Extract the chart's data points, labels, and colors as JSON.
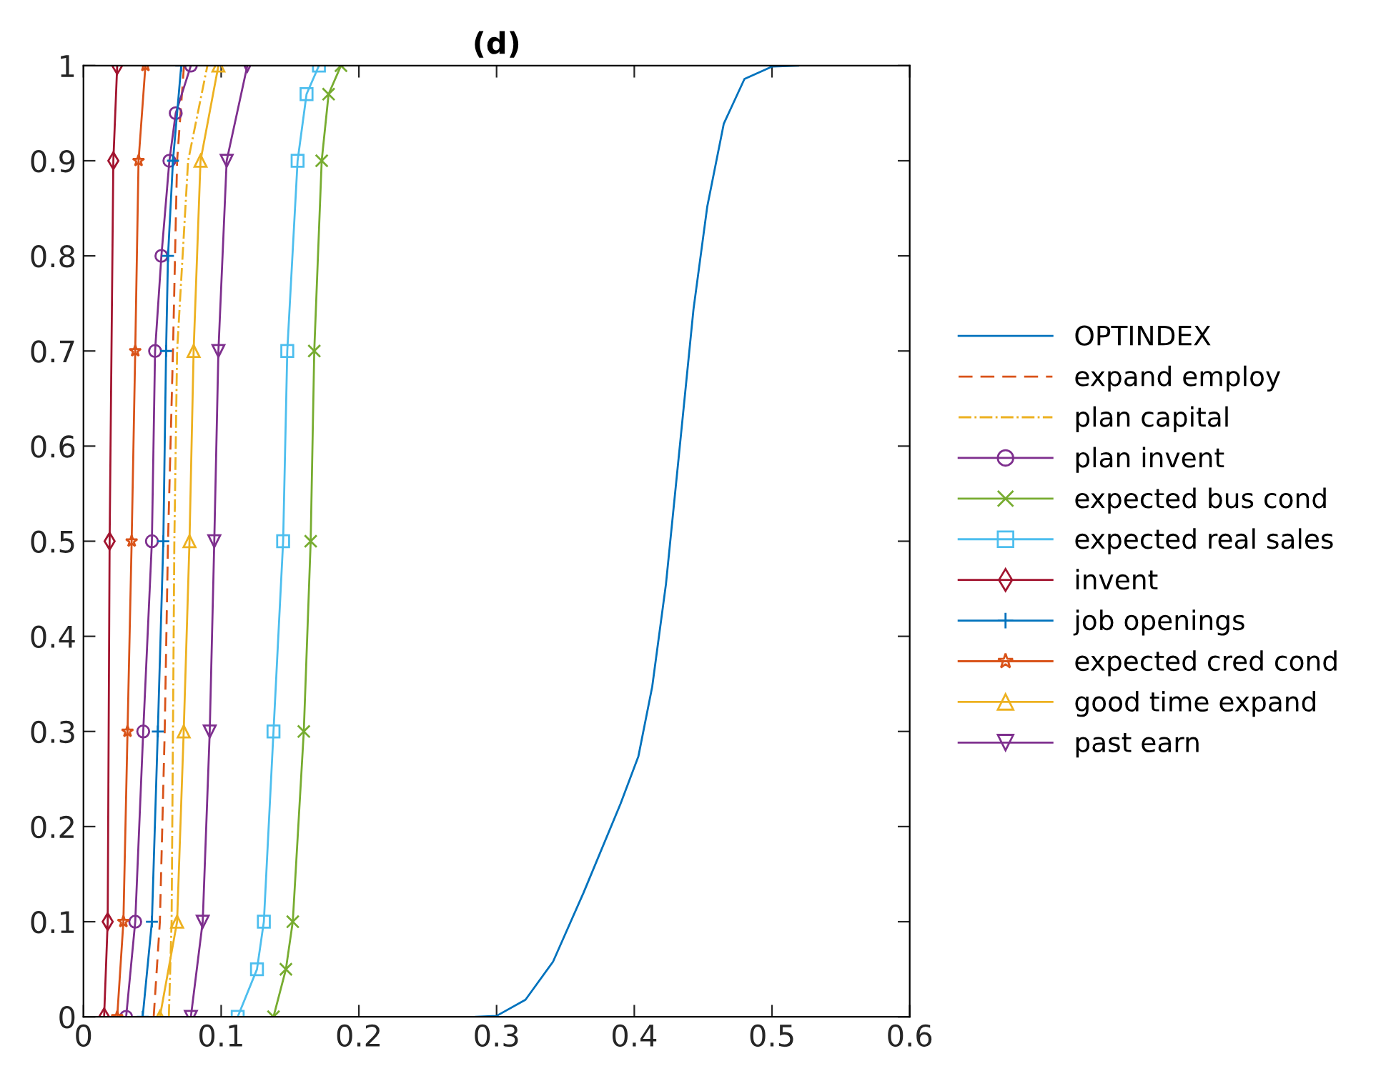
{
  "chart_data": {
    "type": "line",
    "title": "(d)",
    "xlim": [
      0,
      0.6
    ],
    "ylim": [
      0,
      1
    ],
    "xticks": [
      0,
      0.1,
      0.2,
      0.3,
      0.4,
      0.5,
      0.6
    ],
    "yticks": [
      0,
      0.1,
      0.2,
      0.3,
      0.4,
      0.5,
      0.6,
      0.7,
      0.8,
      0.9,
      1
    ],
    "grid": false,
    "legend": "right",
    "series": [
      {
        "name": "OPTINDEX",
        "color": "#0072bd",
        "marker": "none",
        "line_style": "solid",
        "x": [
          0.285,
          0.3,
          0.321,
          0.341,
          0.363,
          0.39,
          0.403,
          0.413,
          0.423,
          0.433,
          0.443,
          0.453,
          0.465,
          0.48,
          0.5,
          0.519
        ],
        "values": [
          0,
          0.001,
          0.018,
          0.058,
          0.13,
          0.224,
          0.274,
          0.347,
          0.455,
          0.599,
          0.744,
          0.852,
          0.939,
          0.986,
          0.999,
          1
        ]
      },
      {
        "name": "expand employ",
        "color": "#d95319",
        "marker": "none",
        "line_style": "dashed",
        "x": [
          0.051,
          0.0555,
          0.059,
          0.0614,
          0.065,
          0.068,
          0.073
        ],
        "values": [
          0,
          0.1,
          0.3,
          0.5,
          0.7,
          0.9,
          1
        ]
      },
      {
        "name": "plan capital",
        "color": "#edb120",
        "marker": "none",
        "line_style": "dashdot",
        "x": [
          0.062,
          0.064,
          0.065,
          0.066,
          0.068,
          0.076,
          0.09
        ],
        "values": [
          0,
          0.1,
          0.3,
          0.5,
          0.7,
          0.9,
          1
        ]
      },
      {
        "name": "plan invent",
        "color": "#7e2f8e",
        "marker": "circle",
        "line_style": "solid",
        "x": [
          0.031,
          0.0376,
          0.0434,
          0.0497,
          0.052,
          0.0566,
          0.0624,
          0.067,
          0.078
        ],
        "values": [
          0,
          0.1,
          0.3,
          0.5,
          0.7,
          0.8,
          0.9,
          0.95,
          1
        ]
      },
      {
        "name": "expected bus cond",
        "color": "#77ac30",
        "marker": "cross",
        "line_style": "solid",
        "x": [
          0.138,
          0.147,
          0.152,
          0.16,
          0.165,
          0.1676,
          0.173,
          0.178,
          0.187
        ],
        "values": [
          0,
          0.05,
          0.1,
          0.3,
          0.5,
          0.7,
          0.9,
          0.97,
          1
        ]
      },
      {
        "name": "expected real sales",
        "color": "#4dbeee",
        "marker": "square",
        "line_style": "solid",
        "x": [
          0.112,
          0.126,
          0.131,
          0.138,
          0.145,
          0.148,
          0.1555,
          0.162,
          0.171
        ],
        "values": [
          0,
          0.05,
          0.1,
          0.3,
          0.5,
          0.7,
          0.9,
          0.97,
          1
        ]
      },
      {
        "name": "invent",
        "color": "#a2142f",
        "marker": "diamond",
        "line_style": "solid",
        "x": [
          0.015,
          0.0176,
          0.019,
          0.0217,
          0.0245
        ],
        "values": [
          0,
          0.1,
          0.5,
          0.9,
          1
        ]
      },
      {
        "name": "job openings",
        "color": "#0072bd",
        "marker": "plus",
        "line_style": "solid",
        "x": [
          0.043,
          0.0497,
          0.054,
          0.058,
          0.06,
          0.0614,
          0.065,
          0.071
        ],
        "values": [
          0,
          0.1,
          0.3,
          0.5,
          0.7,
          0.8,
          0.9,
          1
        ]
      },
      {
        "name": "expected cred cond",
        "color": "#d95319",
        "marker": "star",
        "line_style": "solid",
        "x": [
          0.0245,
          0.029,
          0.032,
          0.035,
          0.0376,
          0.04,
          0.045
        ],
        "values": [
          0,
          0.1,
          0.3,
          0.5,
          0.7,
          0.9,
          1
        ]
      },
      {
        "name": "good time expand",
        "color": "#edb120",
        "marker": "triangle",
        "line_style": "solid",
        "x": [
          0.0555,
          0.068,
          0.0728,
          0.077,
          0.08,
          0.085,
          0.098
        ],
        "values": [
          0,
          0.1,
          0.3,
          0.5,
          0.7,
          0.9,
          1
        ]
      },
      {
        "name": "past earn",
        "color": "#7e2f8e",
        "marker": "triangle_down",
        "line_style": "solid",
        "x": [
          0.078,
          0.0866,
          0.0917,
          0.095,
          0.098,
          0.104,
          0.119
        ],
        "values": [
          0,
          0.1,
          0.3,
          0.5,
          0.7,
          0.9,
          1
        ]
      }
    ]
  }
}
